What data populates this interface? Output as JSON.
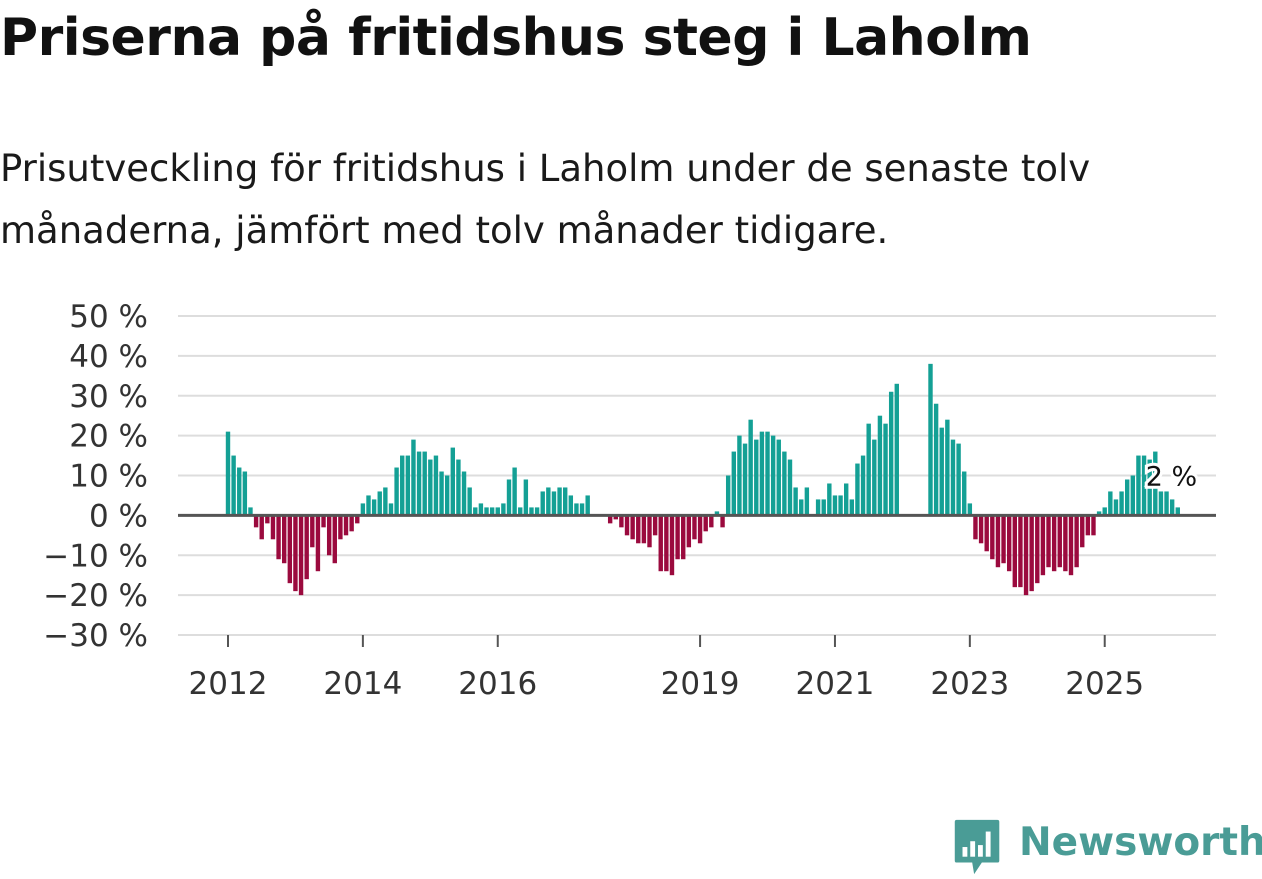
{
  "title": "Priserna på fritidshus steg i Laholm",
  "subtitle": "Prisutveckling för fritidshus i Laholm under de senaste tolv månaderna, jämfört med tolv månader tidigare.",
  "brand": "Newsworthy",
  "colors": {
    "positive": "#14a095",
    "negative": "#9b0a3e",
    "grid": "#dddddd",
    "zero": "#555555",
    "brand": "#4a9c96"
  },
  "chart_data": {
    "type": "bar",
    "title": "Priserna på fritidshus steg i Laholm",
    "ylabel": "",
    "ylim": [
      -30,
      50
    ],
    "yticks": [
      50,
      40,
      30,
      20,
      10,
      0,
      -10,
      -20,
      -30
    ],
    "ytick_labels": [
      "50 %",
      "40 %",
      "30 %",
      "20 %",
      "10 %",
      "0 %",
      "−10 %",
      "−20 %",
      "−30 %"
    ],
    "xticks": [
      {
        "label": "2012",
        "index": 0
      },
      {
        "label": "2014",
        "index": 24
      },
      {
        "label": "2016",
        "index": 48
      },
      {
        "label": "2019",
        "index": 84
      },
      {
        "label": "2021",
        "index": 108
      },
      {
        "label": "2023",
        "index": 132
      },
      {
        "label": "2025",
        "index": 156
      }
    ],
    "start": "2012-01",
    "values": [
      21,
      15,
      12,
      11,
      2,
      -3,
      -6,
      -2,
      -6,
      -11,
      -12,
      -17,
      -19,
      -20,
      -16,
      -8,
      -14,
      -3,
      -10,
      -12,
      -6,
      -5,
      -4,
      -2,
      3,
      5,
      4,
      6,
      7,
      3,
      12,
      15,
      15,
      19,
      16,
      16,
      14,
      15,
      11,
      10,
      17,
      14,
      11,
      7,
      2,
      3,
      2,
      2,
      2,
      3,
      9,
      12,
      2,
      9,
      2,
      2,
      6,
      7,
      6,
      7,
      7,
      5,
      3,
      3,
      5,
      null,
      null,
      null,
      -2,
      -1,
      -3,
      -5,
      -6,
      -7,
      -7,
      -8,
      -5,
      -14,
      -14,
      -15,
      -11,
      -11,
      -8,
      -6,
      -7,
      -4,
      -3,
      1,
      -3,
      10,
      16,
      20,
      18,
      24,
      19,
      21,
      21,
      20,
      19,
      16,
      14,
      7,
      4,
      7,
      null,
      4,
      4,
      8,
      5,
      5,
      8,
      4,
      13,
      15,
      23,
      19,
      25,
      23,
      31,
      33,
      null,
      null,
      null,
      null,
      null,
      38,
      28,
      22,
      24,
      19,
      18,
      11,
      3,
      -6,
      -7,
      -9,
      -11,
      -13,
      -12,
      -14,
      -18,
      -18,
      -20,
      -19,
      -17,
      -15,
      -13,
      -14,
      -13,
      -14,
      -15,
      -13,
      -8,
      -5,
      -5,
      1,
      2,
      6,
      4,
      6,
      9,
      10,
      15,
      15,
      14,
      16,
      6,
      6,
      4,
      2
    ],
    "last_value_label": "2 %"
  }
}
